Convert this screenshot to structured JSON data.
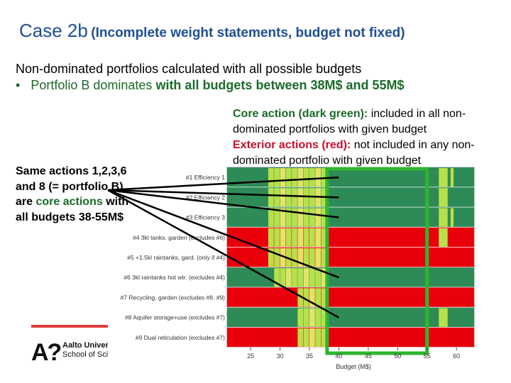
{
  "title": {
    "main": "Case 2b",
    "sub": "(Incomplete weight statements, budget not fixed)"
  },
  "intro": "Non-dominated portfolios calculated with all possible budgets",
  "bullet": {
    "mark": "•",
    "prefix": "Portfolio B dominates",
    "rest": "with all budgets between 38M$ and 55M$"
  },
  "legend": {
    "core_title": "Core action (dark green):",
    "core_text": "included in all non-dominated portfolios with given budget",
    "ext_title": "Exterior actions (red):",
    "ext_text": "not included in any non-dominated portfolio with given budget"
  },
  "same_actions": {
    "part1": "Same actions 1,2,3,6 and 8 (= portfolio B) are",
    "core": "core actions",
    "part2": "with all budgets 38-55M$"
  },
  "logo": {
    "mark": "A?",
    "name": "Aalto University",
    "school": "School of Science"
  },
  "colors": {
    "dark_green": "#2e8b57",
    "red": "#e8000b",
    "light_green": "#b8e04a",
    "yellow": "#e3e36a",
    "highlight": "#2fb52f",
    "accent": "#e13a3a"
  },
  "chart_data": {
    "type": "heatmap",
    "xlabel": "Budget (M$)",
    "x_ticks": [
      25,
      30,
      35,
      40,
      45,
      50,
      55,
      60
    ],
    "x_range": [
      21,
      63
    ],
    "highlight_budget": [
      38,
      55
    ],
    "rows": [
      {
        "label": "#1 Efficiency 1",
        "base": "green",
        "mid_from": 28,
        "mid_to": 38,
        "extra": [
          [
            57,
            58.5,
            "light"
          ],
          [
            59,
            59.5,
            "light"
          ]
        ]
      },
      {
        "label": "#2 Efficiency 2",
        "base": "green",
        "mid_from": 28,
        "mid_to": 38,
        "extra": [
          [
            57,
            58.5,
            "light"
          ]
        ]
      },
      {
        "label": "#3 Efficiency 3",
        "base": "green",
        "mid_from": 28,
        "mid_to": 38,
        "extra": [
          [
            57,
            58.5,
            "light"
          ],
          [
            59,
            59.5,
            "light"
          ]
        ]
      },
      {
        "label": "#4 3kl tanks, garden (excludes #6)",
        "base": "red",
        "mid_from": 28,
        "mid_to": 38,
        "extra": [
          [
            57,
            58.5,
            "light"
          ]
        ]
      },
      {
        "label": "#5 +1.5kl raintanks, gard. (only if #4)",
        "base": "red",
        "mid_from": 28,
        "mid_to": 38,
        "extra": []
      },
      {
        "label": "#6 3kl raintanks hot wtr. (excludes #4)",
        "base": "green",
        "mid_from": 29,
        "mid_to": 38,
        "extra": []
      },
      {
        "label": "#7 Recycling, garden (excludes #8, #9)",
        "base": "red",
        "mid_from": 33,
        "mid_to": 38,
        "extra": []
      },
      {
        "label": "#8 Aquifer storage+use (excludes #7)",
        "base": "green",
        "mid_from": 33,
        "mid_to": 38,
        "extra": [
          [
            57,
            58.5,
            "light"
          ]
        ]
      },
      {
        "label": "#9 Dual reticulation (excludes #7)",
        "base": "red",
        "mid_from": 33,
        "mid_to": 38,
        "extra": []
      }
    ]
  }
}
